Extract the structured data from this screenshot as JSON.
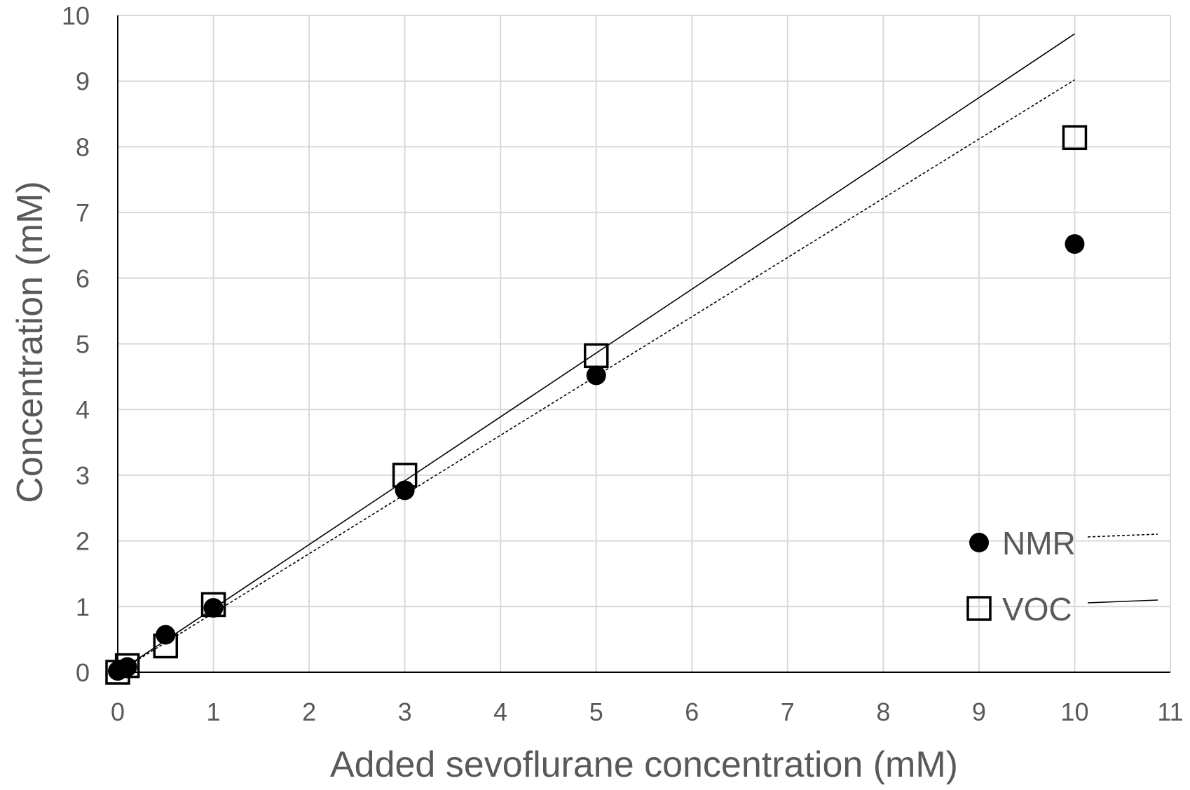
{
  "chart_data": {
    "type": "scatter",
    "title": "",
    "xlabel": "Added sevoflurane concentration (mM)",
    "ylabel": "Concentration (mM)",
    "xlim": [
      0,
      11
    ],
    "ylim": [
      0,
      10
    ],
    "xticks": [
      0,
      1,
      2,
      3,
      4,
      5,
      6,
      7,
      8,
      9,
      10,
      11
    ],
    "yticks": [
      0,
      1,
      2,
      3,
      4,
      5,
      6,
      7,
      8,
      9,
      10
    ],
    "grid": true,
    "legend_position": "bottom-right",
    "series": [
      {
        "name": "NMR",
        "marker": "filled-circle",
        "color": "#000000",
        "x": [
          0,
          0.1,
          0.5,
          1,
          3,
          5,
          10
        ],
        "y": [
          0.02,
          0.08,
          0.57,
          0.98,
          2.77,
          4.52,
          6.52
        ]
      },
      {
        "name": "VOC",
        "marker": "open-square",
        "color": "#000000",
        "x": [
          0,
          0.1,
          0.5,
          1,
          3,
          5,
          10
        ],
        "y": [
          0.0,
          0.1,
          0.4,
          1.03,
          3.0,
          4.82,
          8.14
        ]
      }
    ],
    "trendlines": [
      {
        "series": "NMR",
        "style": "dashed",
        "color": "#000000",
        "x": [
          0,
          10
        ],
        "y": [
          0,
          9.02
        ]
      },
      {
        "series": "VOC",
        "style": "solid",
        "color": "#000000",
        "x": [
          0,
          10
        ],
        "y": [
          0,
          9.72
        ]
      }
    ]
  }
}
